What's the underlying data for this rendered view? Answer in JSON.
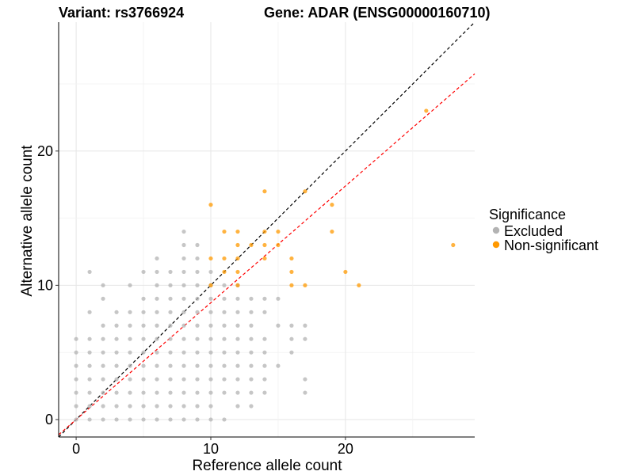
{
  "header": {
    "variant_title": "Variant: rs3766924",
    "gene_title": "Gene: ADAR (ENSG00000160710)"
  },
  "chart_data": {
    "type": "scatter",
    "title": "Variant: rs3766924",
    "subtitle": "Gene: ADAR (ENSG00000160710)",
    "xlabel": "Reference allele count",
    "ylabel": "Alternative allele count",
    "xlim": [
      -1.3,
      29.6
    ],
    "ylim": [
      -1.3,
      29.6
    ],
    "xticks": [
      0,
      10,
      20
    ],
    "yticks": [
      0,
      10,
      20
    ],
    "grid": true,
    "legend": {
      "title": "Significance",
      "placement": "right",
      "entries": [
        "Excluded",
        "Non-significant"
      ]
    },
    "reference_lines": [
      {
        "name": "y = x",
        "slope": 1,
        "intercept": 0,
        "color": "#000000",
        "style": "dashed"
      },
      {
        "name": "fit",
        "slope": 0.87,
        "intercept": 0,
        "color": "#ff0000",
        "style": "dashed"
      }
    ],
    "series": [
      {
        "name": "Excluded",
        "color": "#b3b3b3",
        "points": [
          [
            0,
            0
          ],
          [
            0,
            1
          ],
          [
            0,
            2
          ],
          [
            0,
            3
          ],
          [
            0,
            4
          ],
          [
            0,
            5
          ],
          [
            0,
            6
          ],
          [
            1,
            0
          ],
          [
            1,
            1
          ],
          [
            1,
            2
          ],
          [
            1,
            3
          ],
          [
            1,
            4
          ],
          [
            1,
            5
          ],
          [
            1,
            6
          ],
          [
            1,
            8
          ],
          [
            1,
            11
          ],
          [
            2,
            0
          ],
          [
            2,
            1
          ],
          [
            2,
            2
          ],
          [
            2,
            3
          ],
          [
            2,
            4
          ],
          [
            2,
            5
          ],
          [
            2,
            6
          ],
          [
            2,
            7
          ],
          [
            2,
            9
          ],
          [
            2,
            10
          ],
          [
            3,
            0
          ],
          [
            3,
            1
          ],
          [
            3,
            2
          ],
          [
            3,
            3
          ],
          [
            3,
            4
          ],
          [
            3,
            5
          ],
          [
            3,
            6
          ],
          [
            3,
            7
          ],
          [
            3,
            8
          ],
          [
            4,
            0
          ],
          [
            4,
            1
          ],
          [
            4,
            2
          ],
          [
            4,
            3
          ],
          [
            4,
            4
          ],
          [
            4,
            5
          ],
          [
            4,
            6
          ],
          [
            4,
            7
          ],
          [
            4,
            8
          ],
          [
            4,
            10
          ],
          [
            5,
            0
          ],
          [
            5,
            1
          ],
          [
            5,
            2
          ],
          [
            5,
            3
          ],
          [
            5,
            4
          ],
          [
            5,
            5
          ],
          [
            5,
            6
          ],
          [
            5,
            7
          ],
          [
            5,
            8
          ],
          [
            5,
            9
          ],
          [
            5,
            11
          ],
          [
            6,
            0
          ],
          [
            6,
            1
          ],
          [
            6,
            2
          ],
          [
            6,
            3
          ],
          [
            6,
            4
          ],
          [
            6,
            5
          ],
          [
            6,
            6
          ],
          [
            6,
            7
          ],
          [
            6,
            8
          ],
          [
            6,
            9
          ],
          [
            6,
            10
          ],
          [
            6,
            11
          ],
          [
            6,
            12
          ],
          [
            7,
            0
          ],
          [
            7,
            1
          ],
          [
            7,
            2
          ],
          [
            7,
            3
          ],
          [
            7,
            4
          ],
          [
            7,
            5
          ],
          [
            7,
            6
          ],
          [
            7,
            7
          ],
          [
            7,
            8
          ],
          [
            7,
            9
          ],
          [
            7,
            10
          ],
          [
            7,
            11
          ],
          [
            8,
            0
          ],
          [
            8,
            1
          ],
          [
            8,
            2
          ],
          [
            8,
            3
          ],
          [
            8,
            4
          ],
          [
            8,
            5
          ],
          [
            8,
            6
          ],
          [
            8,
            7
          ],
          [
            8,
            8
          ],
          [
            8,
            9
          ],
          [
            8,
            10
          ],
          [
            8,
            11
          ],
          [
            8,
            12
          ],
          [
            8,
            13
          ],
          [
            8,
            14
          ],
          [
            9,
            0
          ],
          [
            9,
            1
          ],
          [
            9,
            2
          ],
          [
            9,
            3
          ],
          [
            9,
            4
          ],
          [
            9,
            5
          ],
          [
            9,
            6
          ],
          [
            9,
            7
          ],
          [
            9,
            8
          ],
          [
            9,
            9
          ],
          [
            9,
            10
          ],
          [
            9,
            11
          ],
          [
            9,
            12
          ],
          [
            9,
            13
          ],
          [
            10,
            0
          ],
          [
            10,
            1
          ],
          [
            10,
            2
          ],
          [
            10,
            3
          ],
          [
            10,
            4
          ],
          [
            10,
            5
          ],
          [
            10,
            6
          ],
          [
            10,
            7
          ],
          [
            10,
            8
          ],
          [
            10,
            9
          ],
          [
            10,
            10
          ],
          [
            10,
            11
          ],
          [
            11,
            0
          ],
          [
            11,
            2
          ],
          [
            11,
            3
          ],
          [
            11,
            4
          ],
          [
            11,
            5
          ],
          [
            11,
            6
          ],
          [
            11,
            7
          ],
          [
            11,
            8
          ],
          [
            11,
            9
          ],
          [
            11,
            10
          ],
          [
            12,
            1
          ],
          [
            12,
            2
          ],
          [
            12,
            3
          ],
          [
            12,
            4
          ],
          [
            12,
            5
          ],
          [
            12,
            6
          ],
          [
            12,
            7
          ],
          [
            12,
            8
          ],
          [
            12,
            9
          ],
          [
            12,
            10
          ],
          [
            13,
            1
          ],
          [
            13,
            2
          ],
          [
            13,
            3
          ],
          [
            13,
            4
          ],
          [
            13,
            5
          ],
          [
            13,
            6
          ],
          [
            13,
            7
          ],
          [
            13,
            8
          ],
          [
            13,
            9
          ],
          [
            14,
            2
          ],
          [
            14,
            3
          ],
          [
            14,
            4
          ],
          [
            14,
            5
          ],
          [
            14,
            6
          ],
          [
            14,
            8
          ],
          [
            14,
            9
          ],
          [
            15,
            4
          ],
          [
            15,
            7
          ],
          [
            15,
            9
          ],
          [
            16,
            5
          ],
          [
            16,
            6
          ],
          [
            16,
            7
          ],
          [
            17,
            2
          ],
          [
            17,
            3
          ],
          [
            17,
            6
          ],
          [
            17,
            7
          ]
        ]
      },
      {
        "name": "Non-significant",
        "color": "#ff9900",
        "points": [
          [
            10,
            10
          ],
          [
            10,
            12
          ],
          [
            10,
            16
          ],
          [
            11,
            11
          ],
          [
            11,
            12
          ],
          [
            11,
            14
          ],
          [
            12,
            10
          ],
          [
            12,
            11
          ],
          [
            12,
            12
          ],
          [
            12,
            13
          ],
          [
            12,
            14
          ],
          [
            13,
            13
          ],
          [
            14,
            12
          ],
          [
            14,
            13
          ],
          [
            14,
            14
          ],
          [
            14,
            17
          ],
          [
            15,
            13
          ],
          [
            15,
            14
          ],
          [
            16,
            10
          ],
          [
            16,
            11
          ],
          [
            16,
            12
          ],
          [
            17,
            10
          ],
          [
            17,
            17
          ],
          [
            19,
            14
          ],
          [
            19,
            16
          ],
          [
            20,
            11
          ],
          [
            21,
            10
          ],
          [
            26,
            23
          ],
          [
            28,
            13
          ]
        ]
      }
    ]
  }
}
